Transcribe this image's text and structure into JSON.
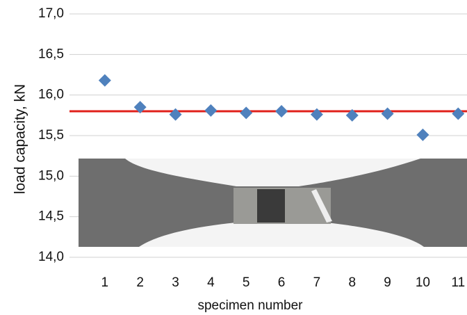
{
  "chart_data": {
    "type": "scatter",
    "y_label": "load capacity, kN",
    "x_label": "specimen number",
    "x": [
      1,
      2,
      3,
      4,
      5,
      6,
      7,
      8,
      9,
      10,
      11
    ],
    "series": [
      {
        "color": "#4f81bd",
        "values": [
          16.18,
          15.85,
          15.76,
          15.81,
          15.78,
          15.8,
          15.76,
          15.75,
          15.77,
          15.51,
          15.77
        ]
      }
    ],
    "reference_line": {
      "value": 15.8,
      "color": "#e0201b"
    },
    "xlim": [
      0,
      11.25
    ],
    "xticks": [
      1,
      2,
      3,
      4,
      5,
      6,
      7,
      8,
      9,
      10,
      11
    ],
    "ylim": [
      14,
      17
    ],
    "yticks": [
      {
        "value": 14,
        "label": "14,0"
      },
      {
        "value": 14.5,
        "label": "14,5"
      },
      {
        "value": 15,
        "label": "15,0"
      },
      {
        "value": 15.5,
        "label": "15,5"
      },
      {
        "value": 16,
        "label": "16,0"
      },
      {
        "value": 16.5,
        "label": "16,5"
      },
      {
        "value": 17,
        "label": "17,0"
      }
    ],
    "grid": true
  }
}
